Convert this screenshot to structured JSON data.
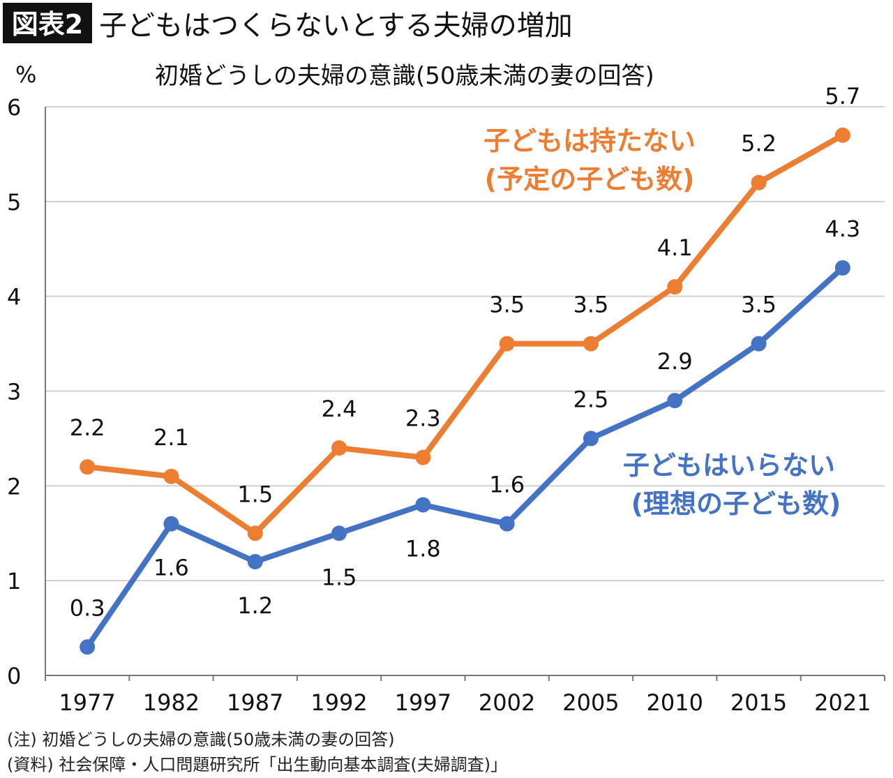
{
  "header": {
    "badge": "図表2",
    "title": "子どもはつくらないとする夫婦の増加"
  },
  "chart_data": {
    "type": "line",
    "title": "初婚どうしの夫婦の意識(50歳未満の妻の回答)",
    "ylabel": "%",
    "xlabel": "",
    "ylim": [
      0,
      6
    ],
    "yticks": [
      "0",
      "1",
      "2",
      "3",
      "4",
      "5",
      "6"
    ],
    "grid": true,
    "categories": [
      "1977",
      "1982",
      "1987",
      "1992",
      "1997",
      "2002",
      "2005",
      "2010",
      "2015",
      "2021"
    ],
    "series": [
      {
        "name": "子どもは持たない",
        "name_line2": "(予定の子ども数)",
        "color": "#ED7D31",
        "values": [
          2.2,
          2.1,
          1.5,
          2.4,
          2.3,
          3.5,
          3.5,
          4.1,
          5.2,
          5.7
        ],
        "labels": [
          "2.2",
          "2.1",
          "1.5",
          "2.4",
          "2.3",
          "3.5",
          "3.5",
          "4.1",
          "5.2",
          "5.7"
        ]
      },
      {
        "name": "子どもはいらない",
        "name_line2": "(理想の子ども数)",
        "color": "#4472C4",
        "values": [
          0.3,
          1.6,
          1.2,
          1.5,
          1.8,
          1.6,
          2.5,
          2.9,
          3.5,
          4.3
        ],
        "labels": [
          "0.3",
          "1.6",
          "1.2",
          "1.5",
          "1.8",
          "1.6",
          "2.5",
          "2.9",
          "3.5",
          "4.3"
        ]
      }
    ]
  },
  "notes": {
    "note": "(注) 初婚どうしの夫婦の意識(50歳未満の妻の回答)",
    "source": "(資料) 社会保障・人口問題研究所「出生動向基本調査(夫婦調査)」"
  }
}
